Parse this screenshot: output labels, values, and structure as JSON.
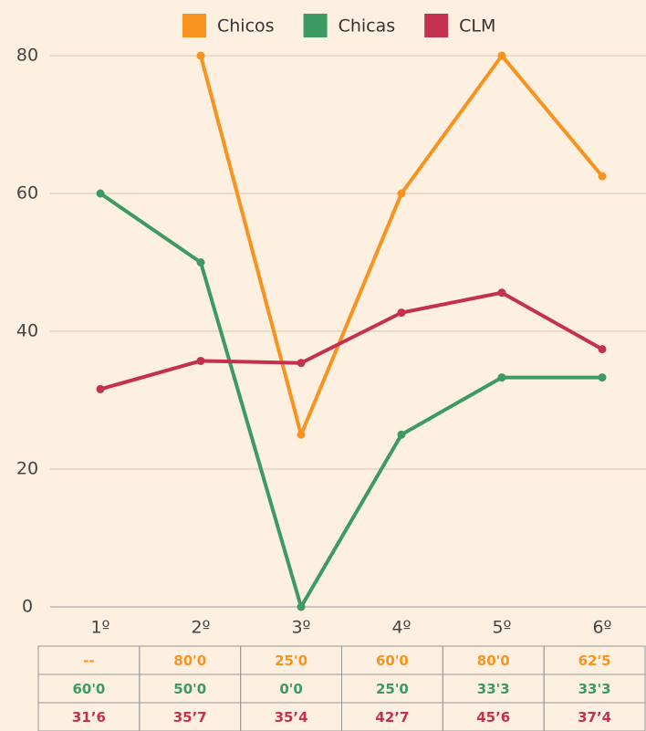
{
  "chart_data": {
    "type": "line",
    "categories": [
      "1º",
      "2º",
      "3º",
      "4º",
      "5º",
      "6º"
    ],
    "series": [
      {
        "name": "Chicos",
        "color": "#f7931e",
        "values": [
          null,
          80,
          25,
          60,
          80,
          62.5
        ],
        "value_labels": [
          "--",
          "80'0",
          "25'0",
          "60'0",
          "80'0",
          "62'5"
        ]
      },
      {
        "name": "Chicas",
        "color": "#3d9a62",
        "values": [
          60,
          50,
          0,
          25,
          33.3,
          33.3
        ],
        "value_labels": [
          "60'0",
          "50'0",
          "0'0",
          "25'0",
          "33'3",
          "33'3"
        ]
      },
      {
        "name": "CLM",
        "color": "#c4304f",
        "values": [
          31.6,
          35.7,
          35.4,
          42.7,
          45.6,
          37.4
        ],
        "value_labels": [
          "31’6",
          "35’7",
          "35’4",
          "42’7",
          "45’6",
          "37’4"
        ]
      }
    ],
    "ylim": [
      0,
      80
    ],
    "yticks": [
      0,
      20,
      40,
      60,
      80
    ],
    "grid": true,
    "legend": "top"
  }
}
